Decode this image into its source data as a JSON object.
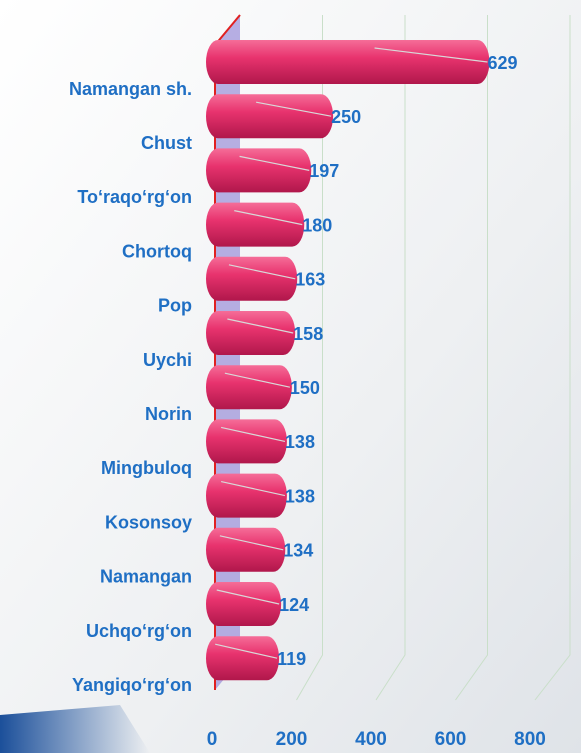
{
  "chart_data": {
    "type": "bar",
    "orientation": "horizontal",
    "categories": [
      "Namangan sh.",
      "Chust",
      "To‘raqo‘rg‘on",
      "Chortoq",
      "Pop",
      "Uychi",
      "Norin",
      "Mingbuloq",
      "Kosonsoy",
      "Namangan",
      "Uchqo‘rg‘on",
      "Yangiqo‘rg‘on"
    ],
    "values": [
      629,
      250,
      197,
      180,
      163,
      158,
      150,
      138,
      138,
      134,
      124,
      119
    ],
    "color": "#e8336e",
    "xlim": [
      0,
      800
    ],
    "xticks": [
      0,
      200,
      400,
      600,
      800
    ],
    "grid": true
  }
}
